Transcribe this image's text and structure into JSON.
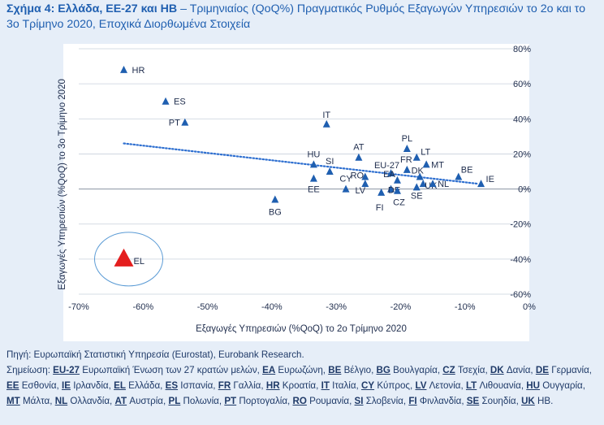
{
  "figure": {
    "title_bold": "Σχήμα 4: Ελλάδα, ΕΕ-27 και ΗΒ",
    "title_rest": " – Τριμηνιαίος (QoQ%) Πραγματικός Ρυθμός Εξαγωγών Υπηρεσιών το 2ο και το 3ο Τρίμηνο 2020, Εποχικά Διορθωμένα Στοιχεία"
  },
  "source": "Πηγή: Ευρωπαϊκή Στατιστική Υπηρεσία (Eurostat), Eurobank Research.",
  "notes": {
    "prefix": "Σημείωση: ",
    "items": [
      {
        "code": "EU-27",
        "name": "Ευρωπαϊκή Ένωση των 27 κρατών μελών"
      },
      {
        "code": "EA",
        "name": "Ευρωζώνη"
      },
      {
        "code": "BE",
        "name": "Βέλγιο"
      },
      {
        "code": "BG",
        "name": "Βουλγαρία"
      },
      {
        "code": "CZ",
        "name": "Τσεχία"
      },
      {
        "code": "DK",
        "name": "Δανία"
      },
      {
        "code": "DE",
        "name": "Γερμανία"
      },
      {
        "code": "EE",
        "name": "Εσθονία"
      },
      {
        "code": "IE",
        "name": "Ιρλανδία"
      },
      {
        "code": "EL",
        "name": "Ελλάδα"
      },
      {
        "code": "ES",
        "name": "Ισπανία"
      },
      {
        "code": "FR",
        "name": "Γαλλία"
      },
      {
        "code": "HR",
        "name": "Κροατία"
      },
      {
        "code": "IT",
        "name": "Ιταλία"
      },
      {
        "code": "CY",
        "name": "Κύπρος"
      },
      {
        "code": "LV",
        "name": "Λετονία"
      },
      {
        "code": "LT",
        "name": "Λιθουανία"
      },
      {
        "code": "HU",
        "name": "Ουγγαρία"
      },
      {
        "code": "MT",
        "name": "Μάλτα"
      },
      {
        "code": "NL",
        "name": "Ολλανδία"
      },
      {
        "code": "AT",
        "name": "Αυστρία"
      },
      {
        "code": "PL",
        "name": "Πολωνία"
      },
      {
        "code": "PT",
        "name": "Πορτογαλία"
      },
      {
        "code": "RO",
        "name": "Ρουμανία"
      },
      {
        "code": "SI",
        "name": "Σλοβενία"
      },
      {
        "code": "FI",
        "name": "Φινλανδία"
      },
      {
        "code": "SE",
        "name": "Σουηδία"
      },
      {
        "code": "UK",
        "name": "ΗΒ"
      }
    ]
  },
  "colors": {
    "marker": "#1f5fb0",
    "highlight": "#e41e1e",
    "trendline": "#2e6fd0",
    "ellipse": "#5b9bd5",
    "grid": "#c8d0dc",
    "axis_text": "#1f2d4d"
  },
  "chart_data": {
    "type": "scatter",
    "xlabel": "Εξαγωγές Υπηρεσιών (%QoQ) το 2ο Τρίμηνο 2020",
    "ylabel": "Εξαγωγές Υπηρεσιών (%QoQ) το 3ο Τρίμηνο 2020",
    "xlim": [
      -70,
      0
    ],
    "ylim": [
      -60,
      80
    ],
    "xticks": [
      "-70%",
      "-60%",
      "-50%",
      "-40%",
      "-30%",
      "-20%",
      "-10%",
      "0%"
    ],
    "yticks": [
      "80%",
      "60%",
      "40%",
      "20%",
      "0%",
      "-20%",
      "-40%",
      "-60%"
    ],
    "grid": "horizontal",
    "trendline": {
      "style": "dotted",
      "x": [
        -63,
        -8
      ],
      "y": [
        26,
        3
      ]
    },
    "points": [
      {
        "label": "HR",
        "x": -63,
        "y": 68
      },
      {
        "label": "ES",
        "x": -56.5,
        "y": 50
      },
      {
        "label": "PT",
        "x": -53.5,
        "y": 38
      },
      {
        "label": "IT",
        "x": -31.5,
        "y": 37
      },
      {
        "label": "HU",
        "x": -33.5,
        "y": 14
      },
      {
        "label": "EE",
        "x": -33.5,
        "y": 6
      },
      {
        "label": "SI",
        "x": -31,
        "y": 10
      },
      {
        "label": "BG",
        "x": -39.5,
        "y": -6
      },
      {
        "label": "AT",
        "x": -26.5,
        "y": 18
      },
      {
        "label": "CY",
        "x": -28.5,
        "y": 0
      },
      {
        "label": "RO",
        "x": -25.5,
        "y": 7
      },
      {
        "label": "LV",
        "x": -25.5,
        "y": 3
      },
      {
        "label": "EU-27",
        "x": -21.5,
        "y": 9
      },
      {
        "label": "EA",
        "x": -20.5,
        "y": 5
      },
      {
        "label": "FI",
        "x": -23,
        "y": -2
      },
      {
        "label": "DE",
        "x": -21.5,
        "y": 0
      },
      {
        "label": "CZ",
        "x": -20.5,
        "y": -1
      },
      {
        "label": "PL",
        "x": -19,
        "y": 23
      },
      {
        "label": "FR",
        "x": -19,
        "y": 11
      },
      {
        "label": "LT",
        "x": -17.5,
        "y": 18
      },
      {
        "label": "DK",
        "x": -17,
        "y": 7
      },
      {
        "label": "MT",
        "x": -16,
        "y": 14
      },
      {
        "label": "SE",
        "x": -17.5,
        "y": 1
      },
      {
        "label": "UK",
        "x": -16.5,
        "y": 3
      },
      {
        "label": "NL",
        "x": -15,
        "y": 3
      },
      {
        "label": "BE",
        "x": -11,
        "y": 7
      },
      {
        "label": "IE",
        "x": -7.5,
        "y": 3
      },
      {
        "label": "EL",
        "x": -63,
        "y": -40,
        "highlight": true
      }
    ]
  }
}
